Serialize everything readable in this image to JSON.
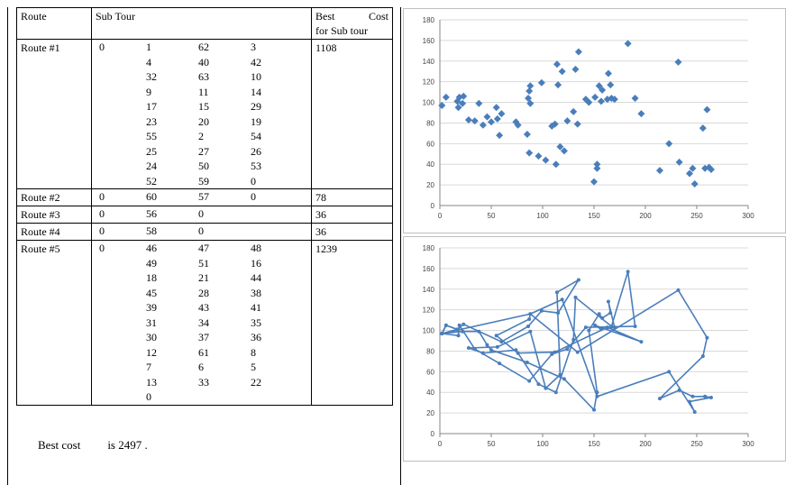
{
  "table": {
    "headers": {
      "route": "Route",
      "subtour": "Sub Tour",
      "best_line1": "Best",
      "best_line1b": "Cost",
      "best_line2": "for Sub tour"
    },
    "routes": [
      {
        "name": "Route #1",
        "cost": "1108",
        "rows": [
          [
            "0",
            "1",
            "62",
            "3"
          ],
          [
            "",
            "4",
            "40",
            "42"
          ],
          [
            "",
            "32",
            "63",
            "10"
          ],
          [
            "",
            "9",
            "11",
            "14"
          ],
          [
            "",
            "17",
            "15",
            "29"
          ],
          [
            "",
            "23",
            "20",
            "19"
          ],
          [
            "",
            "55",
            "2",
            "54"
          ],
          [
            "",
            "25",
            "27",
            "26"
          ],
          [
            "",
            "24",
            "50",
            "53"
          ],
          [
            "",
            "52",
            "59",
            "0"
          ]
        ]
      },
      {
        "name": "Route #2",
        "cost": "78",
        "rows": [
          [
            "0",
            "60",
            "57",
            "0"
          ]
        ]
      },
      {
        "name": "Route #3",
        "cost": "36",
        "rows": [
          [
            "0",
            "56",
            "0",
            ""
          ]
        ]
      },
      {
        "name": "Route #4",
        "cost": "36",
        "rows": [
          [
            "0",
            "58",
            "0",
            ""
          ]
        ]
      },
      {
        "name": "Route #5",
        "cost": "1239",
        "rows": [
          [
            "0",
            "46",
            "47",
            "48"
          ],
          [
            "",
            "49",
            "51",
            "16"
          ],
          [
            "",
            "18",
            "21",
            "44"
          ],
          [
            "",
            "45",
            "28",
            "38"
          ],
          [
            "",
            "39",
            "43",
            "41"
          ],
          [
            "",
            "31",
            "34",
            "35"
          ],
          [
            "",
            "30",
            "37",
            "36"
          ],
          [
            "",
            "12",
            "61",
            "8"
          ],
          [
            "",
            "7",
            "6",
            "5"
          ],
          [
            "",
            "13",
            "33",
            "22"
          ],
          [
            "",
            "0",
            "",
            ""
          ]
        ]
      }
    ]
  },
  "best_cost": {
    "label": "Best cost",
    "value": "is 2497  ."
  },
  "colors": {
    "marker": "#4a7ebb",
    "grid": "#d9d9d9",
    "axis": "#868686"
  },
  "chart_data": [
    {
      "type": "scatter",
      "xlim": [
        0,
        300
      ],
      "ylim": [
        0,
        180
      ],
      "xticks": [
        0,
        50,
        100,
        150,
        200,
        250,
        300
      ],
      "yticks": [
        0,
        20,
        40,
        60,
        80,
        100,
        120,
        140,
        160,
        180
      ],
      "grid": "horizontal",
      "points": [
        [
          2,
          97
        ],
        [
          6,
          105
        ],
        [
          17,
          101
        ],
        [
          19,
          105
        ],
        [
          18,
          95
        ],
        [
          22,
          99
        ],
        [
          23,
          106
        ],
        [
          28,
          83
        ],
        [
          34,
          82
        ],
        [
          38,
          99
        ],
        [
          42,
          78
        ],
        [
          46,
          86
        ],
        [
          50,
          81
        ],
        [
          55,
          95
        ],
        [
          56,
          84
        ],
        [
          58,
          68
        ],
        [
          60,
          89
        ],
        [
          74,
          81
        ],
        [
          76,
          78
        ],
        [
          85,
          69
        ],
        [
          86,
          104
        ],
        [
          87,
          111
        ],
        [
          87,
          51
        ],
        [
          88,
          99
        ],
        [
          88,
          116
        ],
        [
          96,
          48
        ],
        [
          99,
          119
        ],
        [
          103,
          44
        ],
        [
          109,
          77
        ],
        [
          112,
          79
        ],
        [
          113,
          40
        ],
        [
          114,
          137
        ],
        [
          115,
          117
        ],
        [
          117,
          57
        ],
        [
          119,
          130
        ],
        [
          121,
          53
        ],
        [
          124,
          82
        ],
        [
          130,
          91
        ],
        [
          132,
          132
        ],
        [
          134,
          79
        ],
        [
          135,
          149
        ],
        [
          142,
          103
        ],
        [
          145,
          100
        ],
        [
          150,
          23
        ],
        [
          151,
          105
        ],
        [
          153,
          36
        ],
        [
          153,
          40
        ],
        [
          155,
          116
        ],
        [
          157,
          101
        ],
        [
          158,
          112
        ],
        [
          163,
          103
        ],
        [
          164,
          128
        ],
        [
          166,
          117
        ],
        [
          167,
          104
        ],
        [
          170,
          103
        ],
        [
          183,
          157
        ],
        [
          190,
          104
        ],
        [
          196,
          89
        ],
        [
          214,
          34
        ],
        [
          223,
          60
        ],
        [
          232,
          139
        ],
        [
          233,
          42
        ],
        [
          243,
          31
        ],
        [
          246,
          36
        ],
        [
          248,
          21
        ],
        [
          256,
          75
        ],
        [
          258,
          36
        ],
        [
          260,
          93
        ],
        [
          262,
          37
        ],
        [
          264,
          35
        ]
      ]
    },
    {
      "type": "line",
      "xlim": [
        0,
        300
      ],
      "ylim": [
        0,
        180
      ],
      "xticks": [
        0,
        50,
        100,
        150,
        200,
        250,
        300
      ],
      "yticks": [
        0,
        20,
        40,
        60,
        80,
        100,
        120,
        140,
        160,
        180
      ],
      "grid": "horizontal",
      "paths": [
        [
          [
            2,
            97
          ],
          [
            6,
            105
          ],
          [
            17,
            101
          ],
          [
            23,
            106
          ],
          [
            60,
            89
          ],
          [
            86,
            104
          ],
          [
            99,
            119
          ],
          [
            115,
            117
          ],
          [
            135,
            149
          ],
          [
            114,
            137
          ],
          [
            117,
            57
          ],
          [
            103,
            44
          ],
          [
            88,
            99
          ],
          [
            56,
            84
          ],
          [
            28,
            83
          ],
          [
            42,
            78
          ],
          [
            74,
            81
          ],
          [
            96,
            48
          ],
          [
            113,
            40
          ],
          [
            130,
            91
          ],
          [
            132,
            132
          ],
          [
            167,
            104
          ],
          [
            183,
            157
          ],
          [
            190,
            104
          ],
          [
            142,
            103
          ],
          [
            124,
            82
          ],
          [
            109,
            77
          ],
          [
            87,
            51
          ],
          [
            58,
            68
          ],
          [
            34,
            82
          ],
          [
            19,
            105
          ],
          [
            18,
            95
          ],
          [
            2,
            97
          ]
        ],
        [
          [
            2,
            97
          ],
          [
            22,
            99
          ],
          [
            38,
            99
          ],
          [
            46,
            86
          ],
          [
            50,
            81
          ],
          [
            85,
            69
          ],
          [
            121,
            53
          ],
          [
            150,
            23
          ],
          [
            153,
            40
          ],
          [
            145,
            100
          ],
          [
            155,
            116
          ],
          [
            158,
            112
          ],
          [
            166,
            117
          ],
          [
            164,
            128
          ],
          [
            170,
            103
          ],
          [
            157,
            101
          ],
          [
            151,
            105
          ],
          [
            196,
            89
          ],
          [
            163,
            103
          ],
          [
            112,
            79
          ],
          [
            76,
            78
          ],
          [
            55,
            95
          ],
          [
            87,
            111
          ],
          [
            88,
            116
          ],
          [
            119,
            130
          ],
          [
            153,
            36
          ],
          [
            223,
            60
          ],
          [
            248,
            21
          ],
          [
            243,
            31
          ],
          [
            264,
            35
          ],
          [
            258,
            36
          ],
          [
            246,
            36
          ],
          [
            233,
            42
          ],
          [
            214,
            34
          ],
          [
            256,
            75
          ],
          [
            260,
            93
          ],
          [
            232,
            139
          ],
          [
            134,
            79
          ],
          [
            88,
            116
          ],
          [
            2,
            97
          ]
        ],
        [
          [
            2,
            97
          ],
          [
            17,
            101
          ],
          [
            6,
            105
          ],
          [
            2,
            97
          ]
        ]
      ]
    }
  ]
}
